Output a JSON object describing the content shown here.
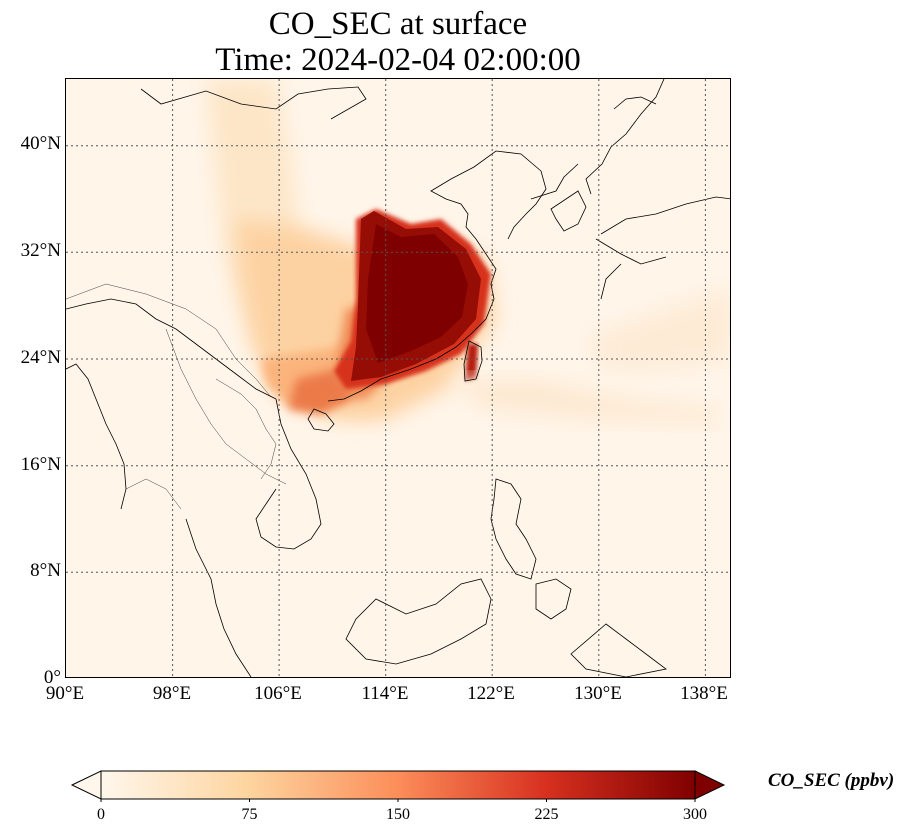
{
  "figure": {
    "title_line1": "CO_SEC at surface",
    "title_line2": "Time: 2024-02-04 02:00:00"
  },
  "map": {
    "projection": "PlateCarree",
    "lon_range": [
      90,
      140
    ],
    "lat_range": [
      0,
      45
    ],
    "gridlines": "dotted",
    "lat_ticks": [
      {
        "value": 40,
        "label": "40°N"
      },
      {
        "value": 32,
        "label": "32°N"
      },
      {
        "value": 24,
        "label": "24°N"
      },
      {
        "value": 16,
        "label": "16°N"
      },
      {
        "value": 8,
        "label": "8°N"
      },
      {
        "value": 0,
        "label": "0°"
      }
    ],
    "lon_ticks": [
      {
        "value": 90,
        "label": "90°E"
      },
      {
        "value": 98,
        "label": "98°E"
      },
      {
        "value": 106,
        "label": "106°E"
      },
      {
        "value": 114,
        "label": "114°E"
      },
      {
        "value": 122,
        "label": "122°E"
      },
      {
        "value": 130,
        "label": "130°E"
      },
      {
        "value": 138,
        "label": "138°E"
      }
    ],
    "colormap": "OrRd",
    "field_max_region": "southeastern China (~111–122°E, 22–35°N), values ≥300 ppbv"
  },
  "colorbar": {
    "label": "CO_SEC (ppbv)",
    "ticks": [
      "0",
      "75",
      "150",
      "225",
      "300"
    ],
    "range": [
      0,
      300
    ],
    "extend": "both",
    "colors": [
      "#fff7ec",
      "#fdd49e",
      "#fc8d59",
      "#d7301f",
      "#7f0000"
    ]
  }
}
